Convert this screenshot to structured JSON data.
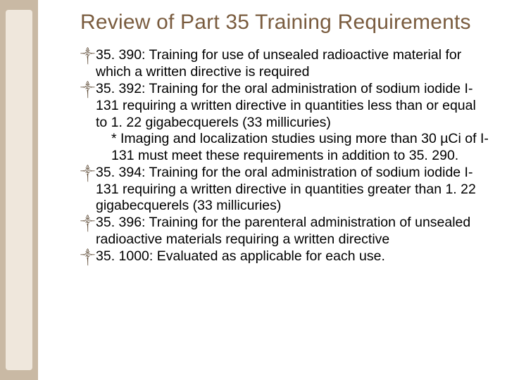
{
  "title_color": "#7a5c3f",
  "text_color": "#000000",
  "stripe_color": "#c9b9a4",
  "stripe_inner_color": "#efe7dc",
  "background_color": "#ffffff",
  "title_fontsize": 30,
  "body_fontsize": 19.5,
  "title": "Review of Part 35 Training Requirements",
  "bullet_glyph": "༒",
  "items": [
    {
      "text": "35. 390: Training for use of unsealed radioactive material for which a written directive is required"
    },
    {
      "text": "35. 392: Training for the oral administration of sodium iodide I-131 requiring a written directive in quantities less than or equal to 1. 22 gigabecquerels (33 millicuries)",
      "sub": "* Imaging and localization studies using more than 30 µCi of I-131 must meet these requirements in addition to 35. 290."
    },
    {
      "text": "35. 394: Training for the oral administration of sodium iodide I-131 requiring a written directive in quantities greater than 1. 22 gigabecquerels (33 millicuries)"
    },
    {
      "text": "35. 396: Training for the parenteral administration of unsealed radioactive materials requiring a written directive"
    },
    {
      "text": "35. 1000: Evaluated as applicable for each use."
    }
  ]
}
